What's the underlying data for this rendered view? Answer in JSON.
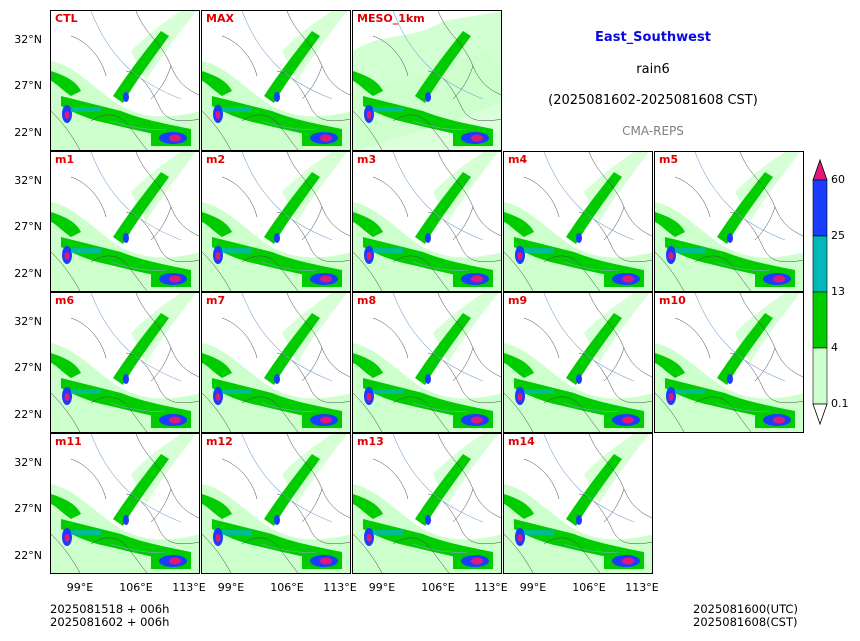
{
  "title": {
    "region": "East_Southwest",
    "variable": "rain6",
    "period": "(2025081602-2025081608 CST)",
    "source": "CMA-REPS"
  },
  "footer": {
    "init_utc": "2025081518  +  006h",
    "init_cst": "2025081602  +  006h",
    "valid_utc": "2025081600(UTC)",
    "valid_cst": "2025081608(CST)"
  },
  "colorbar": {
    "levels": [
      "0.1",
      "4",
      "13",
      "25",
      "60"
    ],
    "colors": [
      "#ffffff",
      "#ccffcc",
      "#00cc00",
      "#00b8b8",
      "#1a3cff",
      "#e0187a"
    ]
  },
  "chart_data": {
    "type": "heatmap",
    "panels": [
      "CTL",
      "MAX",
      "MESO_1km",
      "m1",
      "m2",
      "m3",
      "m4",
      "m5",
      "m6",
      "m7",
      "m8",
      "m9",
      "m10",
      "m11",
      "m12",
      "m13",
      "m14"
    ],
    "y_ticks": [
      "32°N",
      "27°N",
      "22°N"
    ],
    "x_ticks": [
      "99°E",
      "106°E",
      "113°E"
    ]
  }
}
